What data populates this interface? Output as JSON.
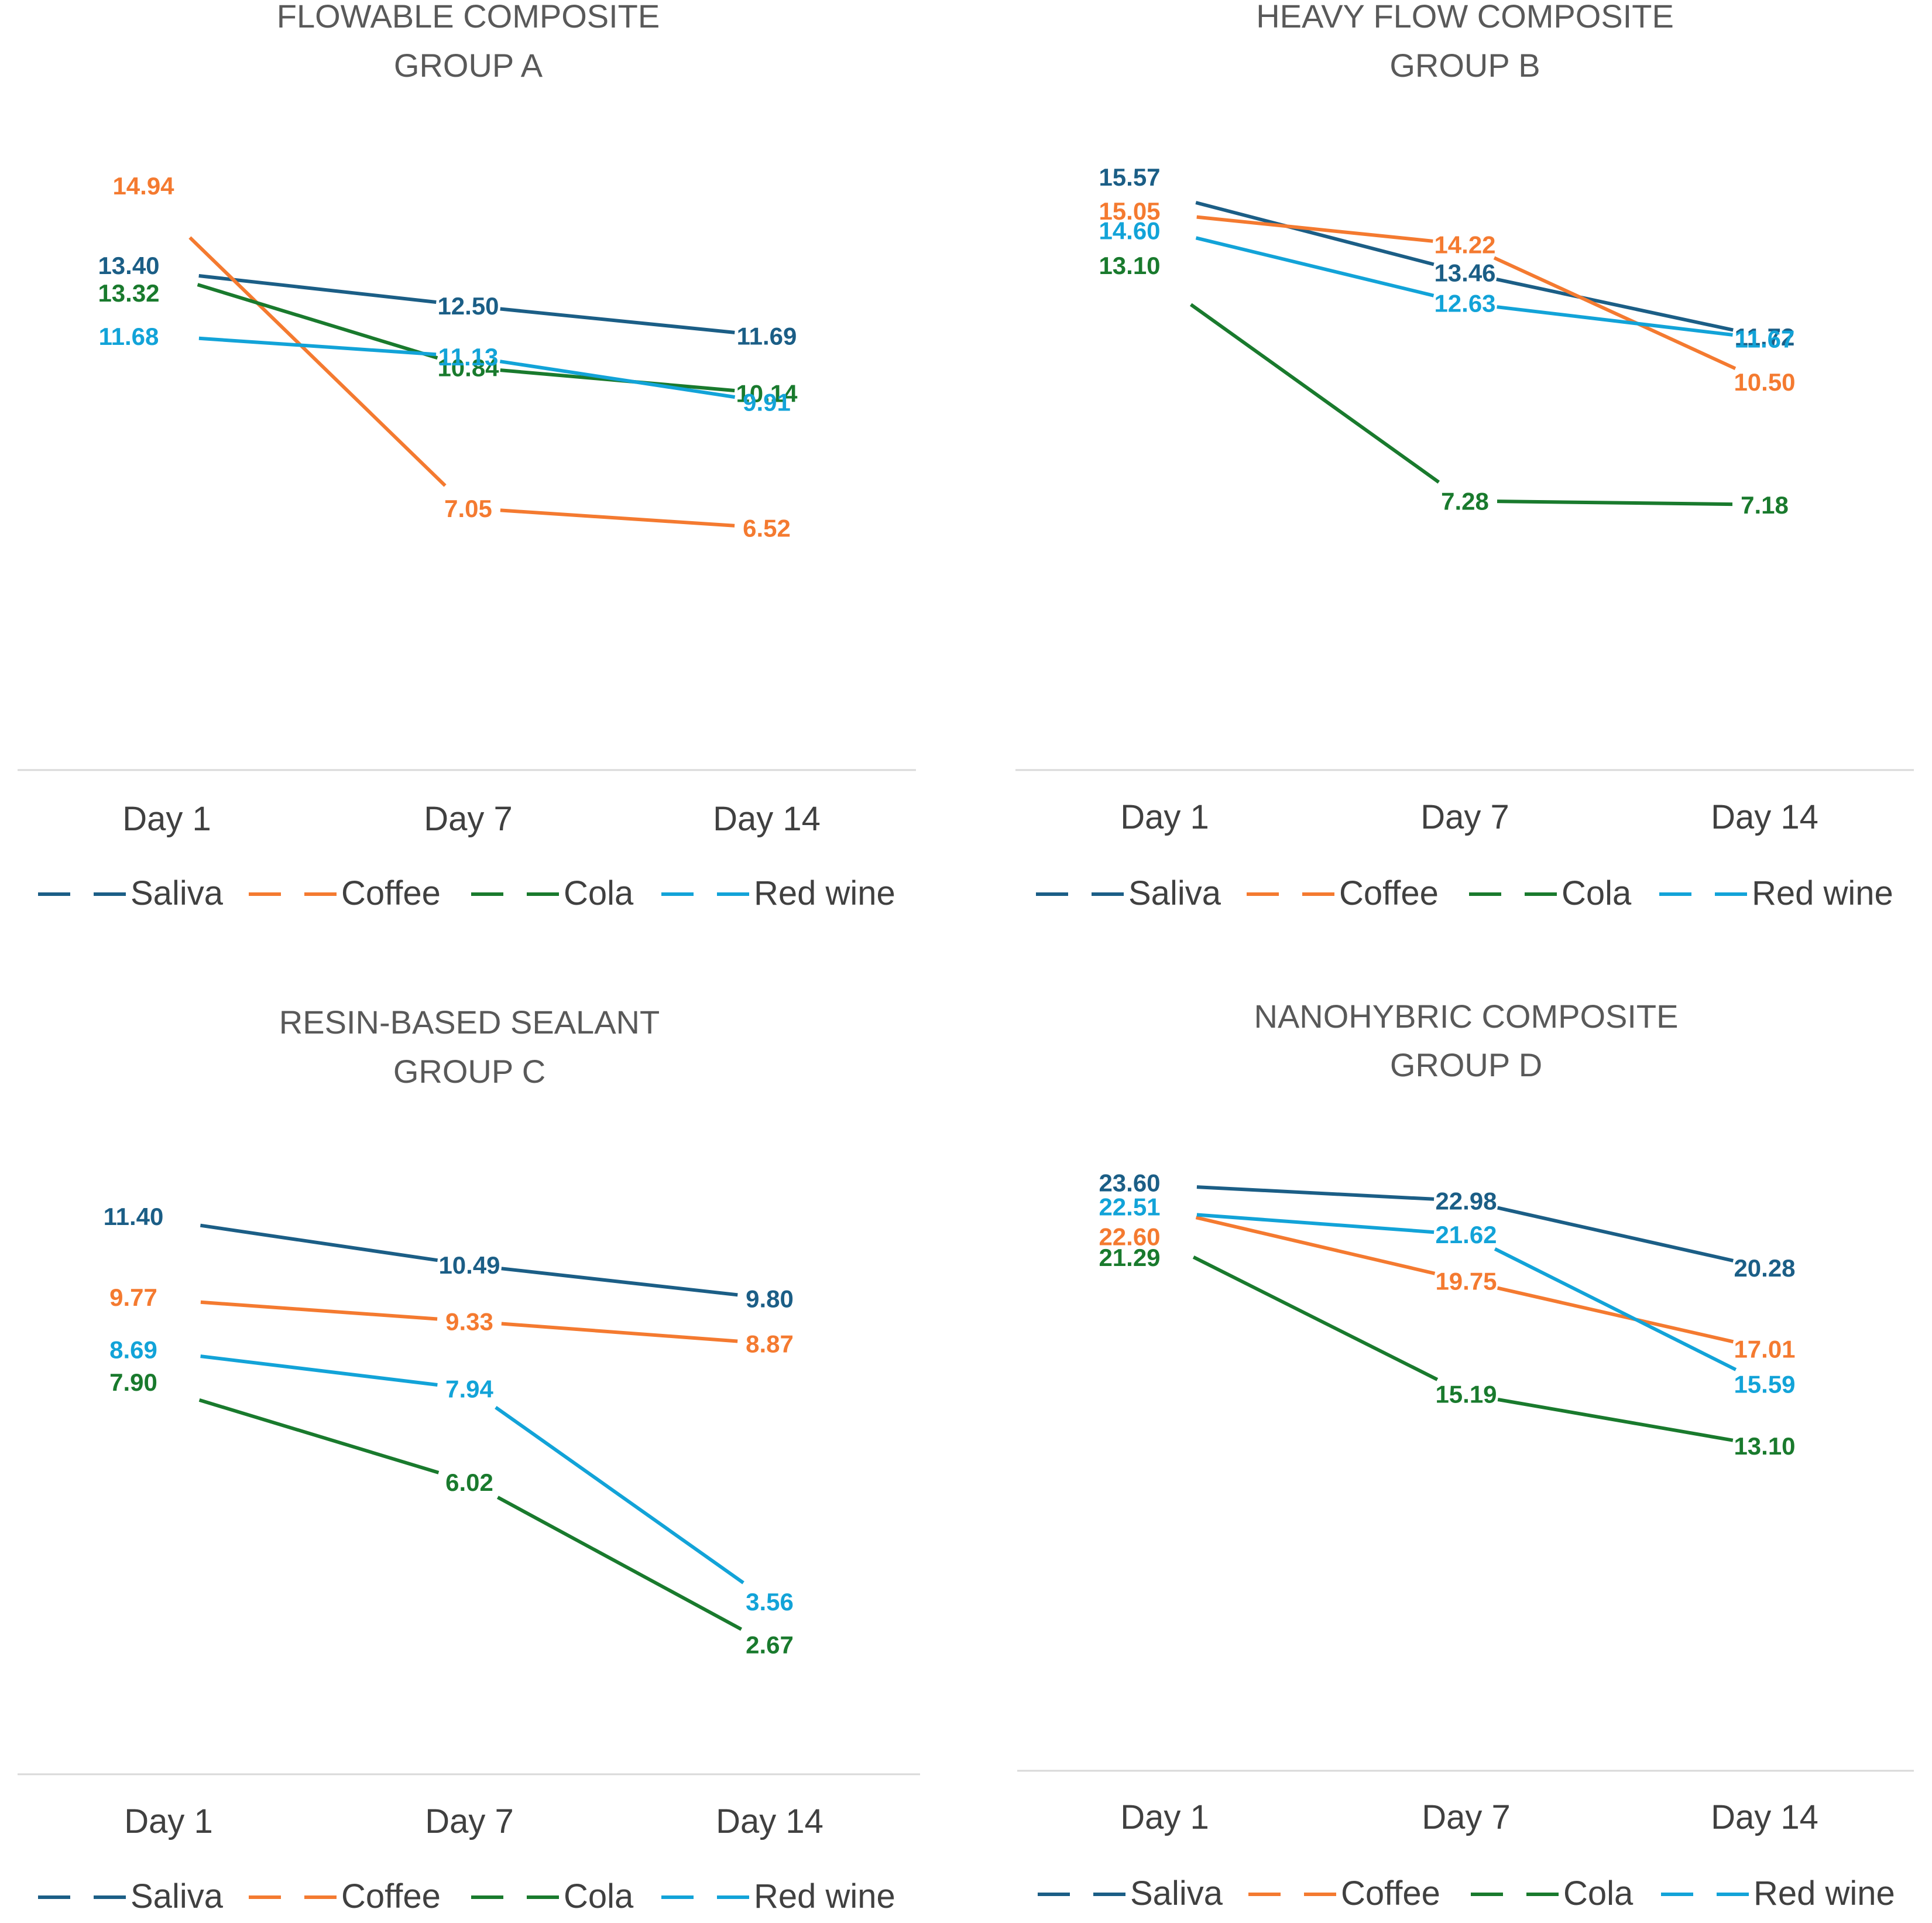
{
  "colors": {
    "Saliva": "#1b5e86",
    "Coffee": "#f47a30",
    "Cola": "#197a2d",
    "Red wine": "#12a3d8"
  },
  "chart_data": [
    {
      "type": "line",
      "title": [
        "FLOWABLE COMPOSITE",
        "GROUP A"
      ],
      "categories": [
        "Day 1",
        "Day 7",
        "Day 14"
      ],
      "ylim": [
        0,
        16
      ],
      "grid": false,
      "legend_position": "bottom",
      "series": [
        {
          "name": "Saliva",
          "values": [
            13.4,
            12.5,
            11.69
          ],
          "labels": [
            "13.40",
            "12.50",
            "11.69"
          ]
        },
        {
          "name": "Coffee",
          "values": [
            14.94,
            7.05,
            6.52
          ],
          "labels": [
            "14.94",
            "7.05",
            "6.52"
          ]
        },
        {
          "name": "Cola",
          "values": [
            13.32,
            10.84,
            10.14
          ],
          "labels": [
            "13.32",
            "10.84",
            "10.14"
          ]
        },
        {
          "name": "Red wine",
          "values": [
            11.68,
            11.13,
            9.91
          ],
          "labels": [
            "11.68",
            "11.13",
            "9.91"
          ]
        }
      ]
    },
    {
      "type": "line",
      "title": [
        "HEAVY FLOW COMPOSITE",
        "GROUP B"
      ],
      "categories": [
        "Day 1",
        "Day 7",
        "Day 14"
      ],
      "ylim": [
        0,
        16
      ],
      "grid": false,
      "legend_position": "bottom",
      "series": [
        {
          "name": "Saliva",
          "values": [
            15.57,
            13.46,
            11.72
          ],
          "labels": [
            "15.57",
            "13.46",
            "11.72"
          ]
        },
        {
          "name": "Coffee",
          "values": [
            15.05,
            14.22,
            10.5
          ],
          "labels": [
            "15.05",
            "14.22",
            "10.50"
          ]
        },
        {
          "name": "Cola",
          "values": [
            13.1,
            7.28,
            7.18
          ],
          "labels": [
            "13.10",
            "7.28",
            "7.18"
          ]
        },
        {
          "name": "Red wine",
          "values": [
            14.6,
            12.63,
            11.67
          ],
          "labels": [
            "14.60",
            "12.63",
            "11.67"
          ]
        }
      ]
    },
    {
      "type": "line",
      "title": [
        "RESIN-BASED SEALANT",
        "GROUP C"
      ],
      "categories": [
        "Day 1",
        "Day 7",
        "Day 14"
      ],
      "ylim": [
        0,
        12
      ],
      "grid": false,
      "legend_position": "bottom",
      "series": [
        {
          "name": "Saliva",
          "values": [
            11.4,
            10.49,
            9.8
          ],
          "labels": [
            "11.40",
            "10.49",
            "9.80"
          ]
        },
        {
          "name": "Coffee",
          "values": [
            9.77,
            9.33,
            8.87
          ],
          "labels": [
            "9.77",
            "9.33",
            "8.87"
          ]
        },
        {
          "name": "Cola",
          "values": [
            7.9,
            6.02,
            2.67
          ],
          "labels": [
            "7.90",
            "6.02",
            "2.67"
          ]
        },
        {
          "name": "Red wine",
          "values": [
            8.69,
            7.94,
            3.56
          ],
          "labels": [
            "8.69",
            "7.94",
            "3.56"
          ]
        }
      ]
    },
    {
      "type": "line",
      "title": [
        "NANOHYBRIC COMPOSITE",
        "GROUP D"
      ],
      "categories": [
        "Day 1",
        "Day 7",
        "Day 14"
      ],
      "ylim": [
        0,
        25
      ],
      "grid": false,
      "legend_position": "bottom",
      "series": [
        {
          "name": "Saliva",
          "values": [
            23.6,
            22.98,
            20.28
          ],
          "labels": [
            "23.60",
            "22.98",
            "20.28"
          ]
        },
        {
          "name": "Coffee",
          "values": [
            22.6,
            19.75,
            17.01
          ],
          "labels": [
            "22.60",
            "19.75",
            "17.01"
          ]
        },
        {
          "name": "Cola",
          "values": [
            21.29,
            15.19,
            13.1
          ],
          "labels": [
            "21.29",
            "15.19",
            "13.10"
          ]
        },
        {
          "name": "Red wine",
          "values": [
            22.51,
            21.62,
            15.59
          ],
          "labels": [
            "22.51",
            "21.62",
            "15.59"
          ]
        }
      ]
    }
  ]
}
